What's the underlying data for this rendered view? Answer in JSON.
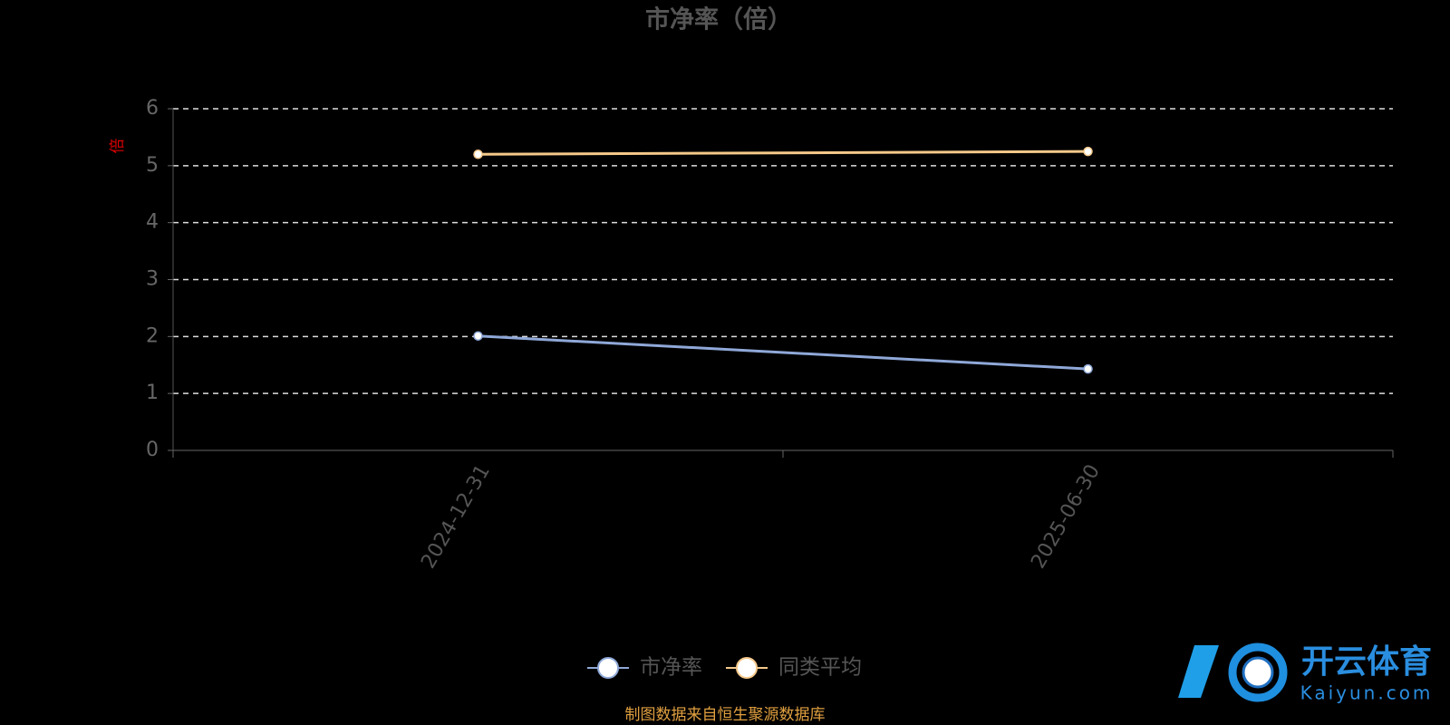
{
  "chart_data": {
    "type": "line",
    "title": "市净率（倍）",
    "y_label": "倍",
    "categories": [
      "2024-12-31",
      "2025-06-30"
    ],
    "series": [
      {
        "name": "市净率",
        "color": "#8fa8d8",
        "values": [
          2.01,
          1.43
        ]
      },
      {
        "name": "同类平均",
        "color": "#f5c98a",
        "values": [
          5.2,
          5.25
        ]
      }
    ],
    "ylim": [
      0,
      6
    ],
    "yticks": [
      0,
      1,
      2,
      3,
      4,
      5,
      6
    ],
    "grid": true,
    "legend": "bottom",
    "source": "制图数据来自恒生聚源数据库",
    "watermark": {
      "brand": "开云体育",
      "site": "Kaiyun.com"
    }
  }
}
